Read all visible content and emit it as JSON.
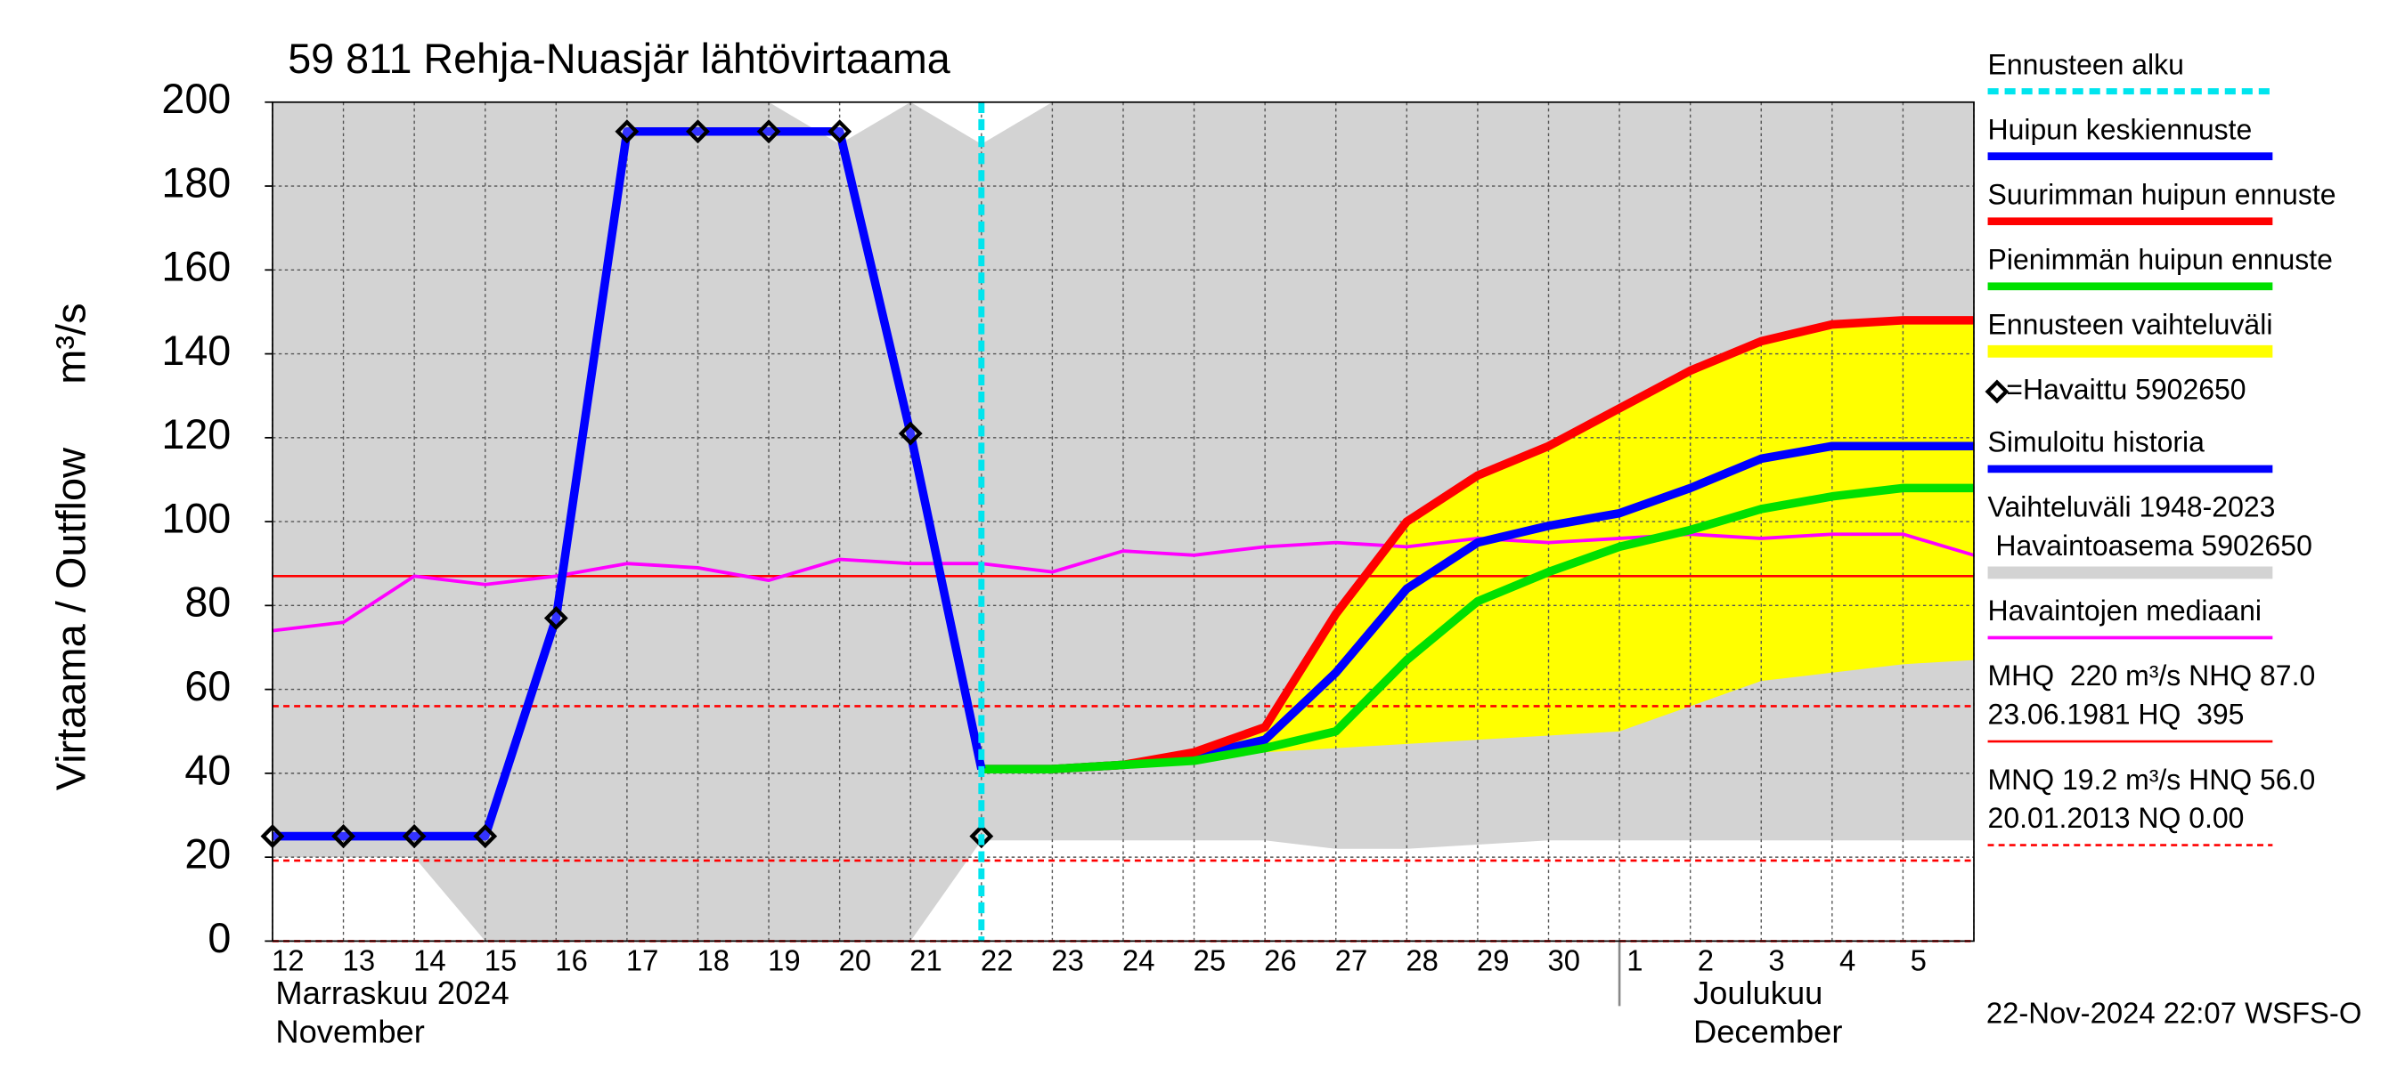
{
  "chart_data": {
    "type": "line",
    "title": "59 811 Rehja-Nuasjär lähtövirtaama",
    "y_label": "Virtaama / Outflow",
    "y_unit": "m³/s",
    "timestamp": "22-Nov-2024 22:07 WSFS-O",
    "categories": [
      "12",
      "13",
      "14",
      "15",
      "16",
      "17",
      "18",
      "19",
      "20",
      "21",
      "22",
      "23",
      "24",
      "25",
      "26",
      "27",
      "28",
      "29",
      "30",
      "1",
      "2",
      "3",
      "4",
      "5",
      null
    ],
    "months": [
      {
        "start": "12",
        "lines": [
          "Marraskuu 2024",
          "November"
        ]
      },
      {
        "start": "1",
        "lines": [
          "Joulukuu",
          "December"
        ]
      }
    ],
    "ylim": [
      0,
      200
    ],
    "yticks": [
      0,
      20,
      40,
      60,
      80,
      100,
      120,
      140,
      160,
      180,
      200
    ],
    "grid": true,
    "series": [
      {
        "name": [
          "Ennusteen alku"
        ],
        "kind": "vline",
        "x": "22",
        "color": "#00e5ee"
      },
      {
        "name": [
          "Huipun keskiennuste"
        ],
        "kind": "line",
        "color": "#0000ff",
        "values": [
          null,
          null,
          null,
          null,
          null,
          null,
          null,
          null,
          null,
          null,
          41,
          41,
          42,
          44,
          48,
          64,
          84,
          95,
          99,
          102,
          108,
          115,
          118,
          118,
          118
        ]
      },
      {
        "name": [
          "Suurimman huipun ennuste"
        ],
        "kind": "line",
        "color": "#ff0000",
        "values": [
          null,
          null,
          null,
          null,
          null,
          null,
          null,
          null,
          null,
          null,
          41,
          41,
          42,
          45,
          51,
          78,
          100,
          111,
          118,
          127,
          136,
          143,
          147,
          148,
          148
        ]
      },
      {
        "name": [
          "Pienimmän huipun ennuste"
        ],
        "kind": "line",
        "color": "#00e000",
        "values": [
          null,
          null,
          null,
          null,
          null,
          null,
          null,
          null,
          null,
          null,
          41,
          41,
          42,
          43,
          46,
          50,
          67,
          81,
          88,
          94,
          98,
          103,
          106,
          108,
          108
        ]
      },
      {
        "name": [
          "Ennusteen vaihteluväli"
        ],
        "kind": "band",
        "color": "#ffff00",
        "upper": [
          null,
          null,
          null,
          null,
          null,
          null,
          null,
          null,
          null,
          null,
          41,
          41,
          42,
          45,
          51,
          78,
          100,
          111,
          118,
          127,
          136,
          143,
          147,
          148,
          148
        ],
        "lower": [
          null,
          null,
          null,
          null,
          null,
          null,
          null,
          null,
          null,
          null,
          41,
          41,
          42,
          43,
          45,
          46,
          47,
          48,
          49,
          50,
          56,
          62,
          64,
          66,
          67
        ]
      },
      {
        "name": [
          "=Havaittu 5902650"
        ],
        "kind": "markers",
        "color": "#000000",
        "values": [
          25,
          25,
          25,
          25,
          77,
          193,
          193,
          193,
          193,
          121,
          25,
          null,
          null,
          null,
          null,
          null,
          null,
          null,
          null,
          null,
          null,
          null,
          null,
          null,
          null
        ]
      },
      {
        "name": [
          "Simuloitu historia"
        ],
        "kind": "line",
        "color": "#0000ff",
        "values": [
          25,
          25,
          25,
          25,
          77,
          193,
          193,
          193,
          193,
          121,
          41,
          null,
          null,
          null,
          null,
          null,
          null,
          null,
          null,
          null,
          null,
          null,
          null,
          null,
          null
        ]
      },
      {
        "name": [
          "Vaihteluväli 1948-2023",
          " Havaintoasema 5902650"
        ],
        "kind": "band",
        "color": "#d3d3d3",
        "upper": [
          200,
          200,
          200,
          200,
          200,
          200,
          200,
          200,
          190,
          200,
          190,
          200,
          200,
          200,
          200,
          200,
          200,
          200,
          200,
          200,
          200,
          200,
          200,
          200,
          200
        ],
        "lower": [
          20,
          20,
          20,
          0,
          0,
          0,
          0,
          0,
          0,
          0,
          24,
          24,
          24,
          24,
          24,
          22,
          22,
          23,
          24,
          24,
          24,
          24,
          24,
          24,
          24
        ]
      },
      {
        "name": [
          "Havaintojen mediaani"
        ],
        "kind": "thin",
        "color": "#ff00ff",
        "values": [
          74,
          76,
          87,
          85,
          87,
          90,
          89,
          86,
          91,
          90,
          90,
          88,
          93,
          92,
          94,
          95,
          94,
          96,
          95,
          96,
          97,
          96,
          97,
          97,
          92
        ]
      }
    ],
    "reference_lines": [
      {
        "name": [
          "MHQ  220 m³/s NHQ 87.0",
          "23.06.1981 HQ  395"
        ],
        "values": [
          87.0
        ],
        "color": "#ff0000",
        "dashed": false
      },
      {
        "name": [
          "MNQ 19.2 m³/s HNQ 56.0",
          "20.01.2013 NQ 0.00"
        ],
        "values": [
          56.0,
          19.2,
          0
        ],
        "color": "#ff0000",
        "dashed": true
      }
    ]
  }
}
